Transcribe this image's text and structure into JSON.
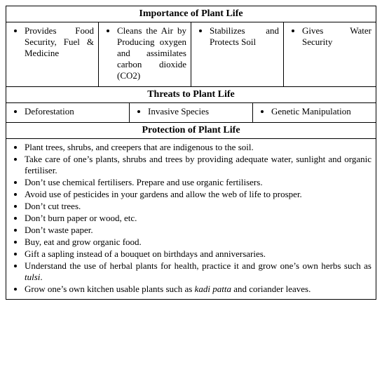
{
  "sections": {
    "importance": {
      "title": "Importance of Plant Life",
      "cells": [
        "Provides Food Security, Fuel & Medicine",
        "Cleans the Air by Producing oxygen and assimilates carbon dioxide (CO2)",
        "Stabilizes and Protects Soil",
        "Gives Water Security"
      ]
    },
    "threats": {
      "title": "Threats to Plant Life",
      "cells": [
        "Deforestation",
        "Invasive Species",
        "Genetic Manipulation"
      ]
    },
    "protection": {
      "title": "Protection of Plant Life",
      "items_html": [
        "Plant trees, shrubs, and creepers that are indigenous to the soil.",
        "Take care of one’s plants, shrubs and trees by providing adequate water, sunlight and organic fertiliser.",
        "Don’t use chemical fertilisers. Prepare and use organic fertilisers.",
        "Avoid use of pesticides in your gardens and allow the web of life to prosper.",
        "Don’t cut trees.",
        "Don’t burn paper or wood, etc.",
        "Don’t waste paper.",
        "Buy, eat and grow organic food.",
        "Gift a sapling instead of a bouquet on birthdays and anniversaries.",
        "Understand the use of herbal plants for health, practice it and grow one’s own herbs such as <em>tulsi</em>.",
        "Grow one’s own kitchen usable plants such as <em>kadi patta</em> and coriander leaves."
      ]
    }
  }
}
